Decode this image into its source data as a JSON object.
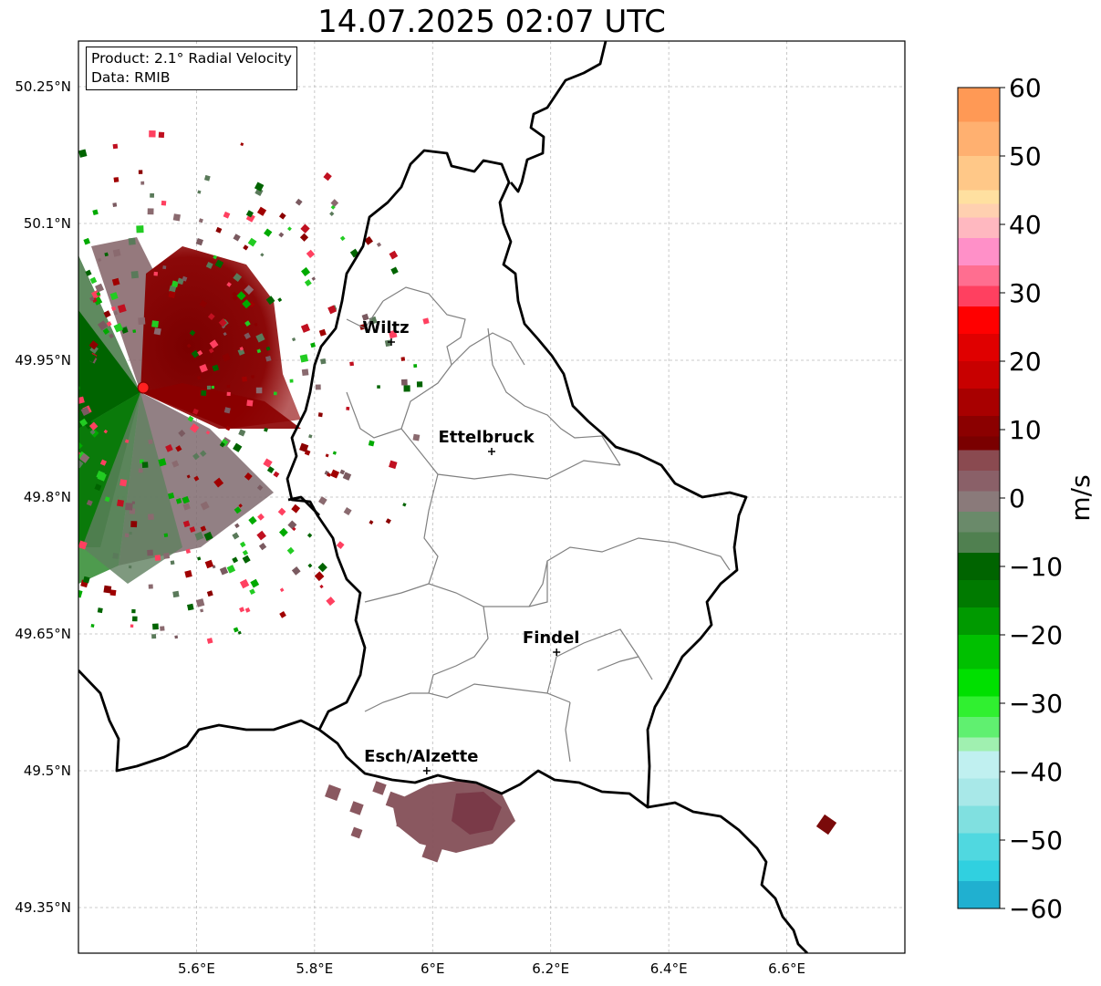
{
  "title": "14.07.2025 02:07 UTC",
  "info": {
    "product": "Product: 2.1° Radial Velocity",
    "data": "Data: RMIB"
  },
  "map": {
    "lon_range": [
      5.4,
      6.8
    ],
    "lat_range": [
      49.3,
      50.3
    ],
    "x_ticks": [
      "5.6°E",
      "5.8°E",
      "6°E",
      "6.2°E",
      "6.4°E",
      "6.6°E"
    ],
    "y_ticks": [
      "50.25°N",
      "50.1°N",
      "49.95°N",
      "49.8°N",
      "49.65°N",
      "49.5°N",
      "49.35°N"
    ],
    "grid": true,
    "cities": [
      {
        "name": "Wiltz",
        "lon": 5.93,
        "lat": 49.97
      },
      {
        "name": "Ettelbruck",
        "lon": 6.1,
        "lat": 49.85
      },
      {
        "name": "Findel",
        "lon": 6.21,
        "lat": 49.63
      },
      {
        "name": "Esch/Alzette",
        "lon": 5.99,
        "lat": 49.5
      }
    ],
    "radar_site": {
      "lon": 5.51,
      "lat": 49.92
    }
  },
  "colorbar": {
    "label": "m/s",
    "min": -60,
    "max": 60,
    "ticks": [
      "60",
      "50",
      "40",
      "30",
      "20",
      "10",
      "0",
      "−10",
      "−20",
      "−30",
      "−40",
      "−50",
      "−60"
    ]
  }
}
